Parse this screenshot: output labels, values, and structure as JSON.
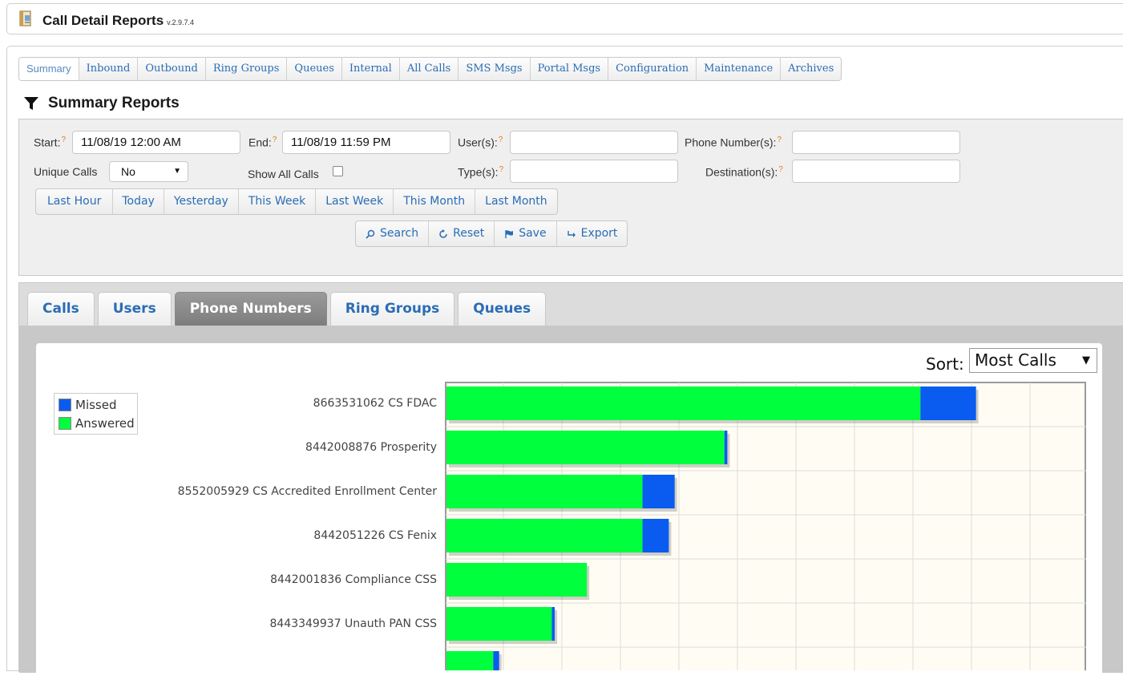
{
  "app": {
    "title": "Call Detail Reports",
    "version": "v.2.9.7.4"
  },
  "nav_tabs": [
    {
      "label": "Summary",
      "active": true
    },
    {
      "label": "Inbound"
    },
    {
      "label": "Outbound"
    },
    {
      "label": "Ring Groups"
    },
    {
      "label": "Queues"
    },
    {
      "label": "Internal"
    },
    {
      "label": "All Calls"
    },
    {
      "label": "SMS Msgs"
    },
    {
      "label": "Portal Msgs"
    },
    {
      "label": "Configuration"
    },
    {
      "label": "Maintenance"
    },
    {
      "label": "Archives"
    }
  ],
  "section_title": "Summary Reports",
  "filters": {
    "start_label": "Start:",
    "start_value": "11/08/19 12:00 AM",
    "end_label": "End:",
    "end_value": "11/08/19 11:59 PM",
    "users_label": "User(s):",
    "users_value": "",
    "phone_label": "Phone Number(s):",
    "phone_value": "",
    "unique_label": "Unique Calls",
    "unique_value": "No",
    "show_all_label": "Show All Calls",
    "types_label": "Type(s):",
    "types_value": "",
    "dest_label": "Destination(s):",
    "dest_value": "",
    "qmark": "?"
  },
  "quick_ranges": [
    "Last Hour",
    "Today",
    "Yesterday",
    "This Week",
    "Last Week",
    "This Month",
    "Last Month"
  ],
  "actions": {
    "search": "Search",
    "reset": "Reset",
    "save": "Save",
    "export": "Export"
  },
  "report_tabs": [
    {
      "label": "Calls"
    },
    {
      "label": "Users"
    },
    {
      "label": "Phone Numbers",
      "active": true
    },
    {
      "label": "Ring Groups"
    },
    {
      "label": "Queues"
    }
  ],
  "sort": {
    "label": "Sort:",
    "value": "Most Calls"
  },
  "colors": {
    "missed": "#0a5cf0",
    "answered": "#00ff3c"
  },
  "chart_data": {
    "type": "bar",
    "orientation": "horizontal",
    "stacked": true,
    "categories": [
      "8663531062 CS FDAC",
      "8442008876 Prosperity",
      "8552005929 CS Accredited Enrollment Center",
      "8442051226 CS Fenix",
      "8442001836 Compliance CSS",
      "8443349937 Unauth PAN CSS",
      ""
    ],
    "series": [
      {
        "name": "Answered",
        "values": [
          162,
          95,
          67,
          67,
          48,
          36,
          16
        ]
      },
      {
        "name": "Missed",
        "values": [
          19,
          1,
          11,
          9,
          0,
          1,
          2
        ]
      }
    ],
    "legend": "top-left",
    "grid": true
  }
}
